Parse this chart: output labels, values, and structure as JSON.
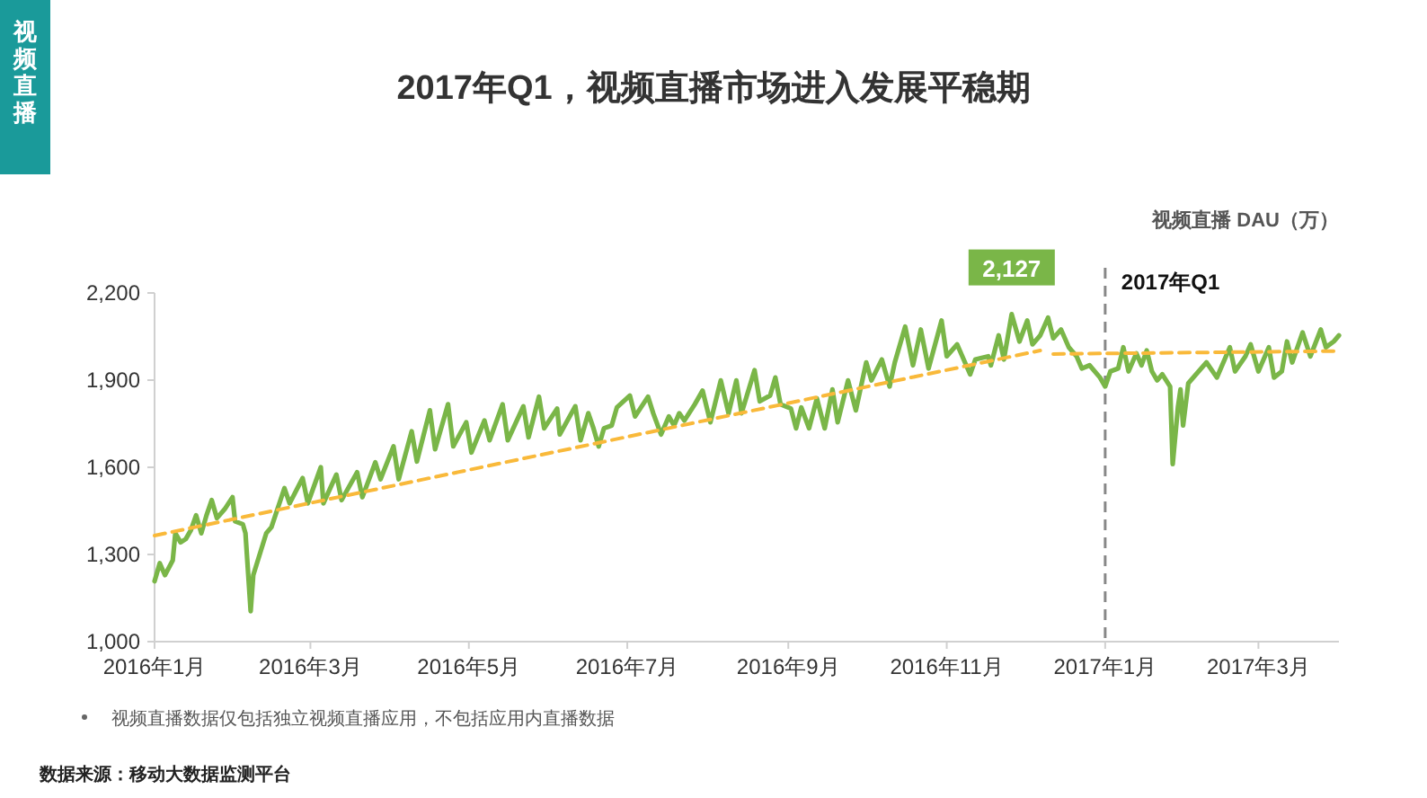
{
  "chart_data": {
    "type": "line",
    "title": "2017年Q1，视频直播市场进入发展平稳期",
    "ylabel": "视频直播 DAU（万）",
    "xlim": [
      "2016-01-01",
      "2017-04-01"
    ],
    "xticks": [
      {
        "value": "2016-01-01",
        "label": "2016年1月"
      },
      {
        "value": "2016-03-01",
        "label": "2016年3月"
      },
      {
        "value": "2016-05-01",
        "label": "2016年5月"
      },
      {
        "value": "2016-07-01",
        "label": "2016年7月"
      },
      {
        "value": "2016-09-01",
        "label": "2016年9月"
      },
      {
        "value": "2016-11-01",
        "label": "2016年11月"
      },
      {
        "value": "2017-01-01",
        "label": "2017年1月"
      },
      {
        "value": "2017-03-01",
        "label": "2017年3月"
      }
    ],
    "ylim": [
      1000,
      2200
    ],
    "yticks": [
      {
        "value": 1000,
        "label": "1,000"
      },
      {
        "value": 1300,
        "label": "1,300"
      },
      {
        "value": 1600,
        "label": "1,600"
      },
      {
        "value": 1900,
        "label": "1,900"
      },
      {
        "value": 2200,
        "label": "2,200"
      }
    ],
    "ref_lines": [
      {
        "axis": "x",
        "value": "2017-01-01",
        "label": "2017年Q1",
        "color": "#888888",
        "line_style": "dashed"
      }
    ],
    "annotations": [
      "视频直播",
      "视频直播数据仅包括独立视频直播应用，不包括应用内直播数据",
      "数据来源：移动大数据监测平台",
      {
        "text": "2,127",
        "x": "2016-11-26",
        "y": 2127
      }
    ],
    "series": [
      {
        "color": "#7ab648",
        "x": [
          "2016-01-01",
          "2016-01-03",
          "2016-01-05",
          "2016-01-08",
          "2016-01-09",
          "2016-01-11",
          "2016-01-13",
          "2016-01-15",
          "2016-01-17",
          "2016-01-19",
          "2016-01-21",
          "2016-01-23",
          "2016-01-25",
          "2016-01-28",
          "2016-01-31",
          "2016-02-01",
          "2016-02-04",
          "2016-02-05",
          "2016-02-07",
          "2016-02-08",
          "2016-02-13",
          "2016-02-15",
          "2016-02-20",
          "2016-02-22",
          "2016-02-27",
          "2016-02-29",
          "2016-03-05",
          "2016-03-06",
          "2016-03-11",
          "2016-03-13",
          "2016-03-19",
          "2016-03-21",
          "2016-03-26",
          "2016-03-28",
          "2016-04-02",
          "2016-04-04",
          "2016-04-09",
          "2016-04-11",
          "2016-04-16",
          "2016-04-18",
          "2016-04-23",
          "2016-04-25",
          "2016-04-30",
          "2016-05-02",
          "2016-05-07",
          "2016-05-09",
          "2016-05-14",
          "2016-05-16",
          "2016-05-22",
          "2016-05-24",
          "2016-05-28",
          "2016-05-30",
          "2016-06-04",
          "2016-06-05",
          "2016-06-11",
          "2016-06-13",
          "2016-06-16",
          "2016-06-18",
          "2016-06-20",
          "2016-06-22",
          "2016-06-25",
          "2016-06-27",
          "2016-07-02",
          "2016-07-04",
          "2016-07-09",
          "2016-07-11",
          "2016-07-14",
          "2016-07-17",
          "2016-07-19",
          "2016-07-21",
          "2016-07-23",
          "2016-07-27",
          "2016-07-30",
          "2016-08-02",
          "2016-08-06",
          "2016-08-09",
          "2016-08-12",
          "2016-08-14",
          "2016-08-19",
          "2016-08-21",
          "2016-08-25",
          "2016-08-27",
          "2016-08-29",
          "2016-09-02",
          "2016-09-04",
          "2016-09-06",
          "2016-09-09",
          "2016-09-12",
          "2016-09-15",
          "2016-09-18",
          "2016-09-20",
          "2016-09-24",
          "2016-09-27",
          "2016-10-01",
          "2016-10-03",
          "2016-10-07",
          "2016-10-10",
          "2016-10-12",
          "2016-10-16",
          "2016-10-19",
          "2016-10-22",
          "2016-10-25",
          "2016-10-30",
          "2016-11-01",
          "2016-11-05",
          "2016-11-10",
          "2016-11-12",
          "2016-11-17",
          "2016-11-18",
          "2016-11-21",
          "2016-11-23",
          "2016-11-26",
          "2016-11-29",
          "2016-12-02",
          "2016-12-04",
          "2016-12-07",
          "2016-12-10",
          "2016-12-12",
          "2016-12-15",
          "2016-12-18",
          "2016-12-21",
          "2016-12-23",
          "2016-12-26",
          "2016-12-30",
          "2017-01-01",
          "2017-01-03",
          "2017-01-06",
          "2017-01-08",
          "2017-01-10",
          "2017-01-13",
          "2017-01-15",
          "2017-01-17",
          "2017-01-19",
          "2017-01-21",
          "2017-01-23",
          "2017-01-26",
          "2017-01-27",
          "2017-01-29",
          "2017-01-30",
          "2017-01-31",
          "2017-02-02",
          "2017-02-05",
          "2017-02-09",
          "2017-02-13",
          "2017-02-16",
          "2017-02-18",
          "2017-02-20",
          "2017-02-24",
          "2017-02-26",
          "2017-03-01",
          "2017-03-05",
          "2017-03-07",
          "2017-03-10",
          "2017-03-12",
          "2017-03-14",
          "2017-03-18",
          "2017-03-21",
          "2017-03-25",
          "2017-03-27",
          "2017-03-30",
          "2017-04-01"
        ],
        "values": [
          1208,
          1270,
          1229,
          1280,
          1373,
          1342,
          1353,
          1384,
          1435,
          1373,
          1435,
          1487,
          1425,
          1456,
          1497,
          1414,
          1404,
          1373,
          1105,
          1229,
          1373,
          1394,
          1528,
          1476,
          1563,
          1476,
          1600,
          1476,
          1575,
          1487,
          1583,
          1497,
          1617,
          1559,
          1672,
          1559,
          1724,
          1620,
          1796,
          1662,
          1817,
          1672,
          1755,
          1651,
          1761,
          1693,
          1817,
          1693,
          1810,
          1703,
          1843,
          1734,
          1802,
          1713,
          1810,
          1693,
          1786,
          1734,
          1672,
          1734,
          1744,
          1806,
          1847,
          1775,
          1843,
          1786,
          1713,
          1775,
          1744,
          1786,
          1761,
          1817,
          1864,
          1755,
          1899,
          1786,
          1899,
          1786,
          1934,
          1827,
          1847,
          1909,
          1817,
          1802,
          1734,
          1806,
          1734,
          1837,
          1734,
          1868,
          1755,
          1899,
          1796,
          1961,
          1899,
          1971,
          1878,
          1961,
          2084,
          1951,
          2074,
          1940,
          2105,
          1982,
          2023,
          1920,
          1971,
          1982,
          1951,
          2054,
          1971,
          2127,
          2033,
          2105,
          2023,
          2054,
          2115,
          2044,
          2074,
          2013,
          1982,
          1940,
          1951,
          1909,
          1878,
          1930,
          1940,
          2013,
          1930,
          1992,
          1951,
          2002,
          1930,
          1899,
          1920,
          1878,
          1611,
          1806,
          1868,
          1744,
          1889,
          1920,
          1961,
          1909,
          1971,
          2013,
          1930,
          1982,
          2023,
          1930,
          2013,
          1909,
          1930,
          2033,
          1961,
          2064,
          1982,
          2074,
          2013,
          2033,
          2054
        ]
      },
      {
        "color": "#f9b93a",
        "line_style": "dashed",
        "x": [
          "2016-01-01",
          "2016-12-07"
        ],
        "values": [
          1365,
          2002
        ]
      },
      {
        "color": "#f9b93a",
        "line_style": "dashed",
        "x": [
          "2016-12-12",
          "2017-04-01"
        ],
        "values": [
          1990,
          2000
        ]
      }
    ]
  }
}
